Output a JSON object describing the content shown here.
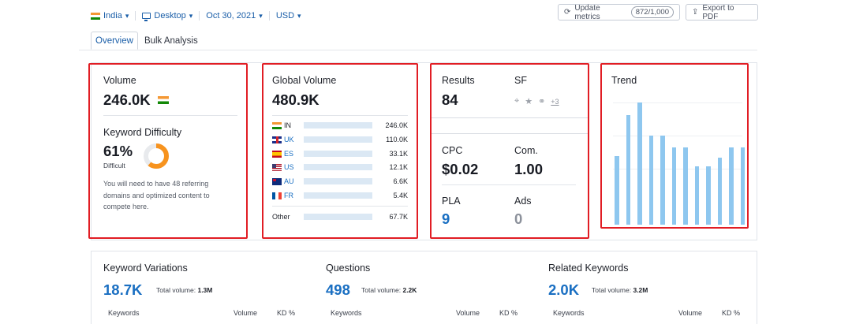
{
  "filters": [
    {
      "label": "India",
      "icon": "india-flag-icon"
    },
    {
      "label": "Desktop",
      "icon": "desktop-icon"
    },
    {
      "label": "Oct 30, 2021",
      "icon": ""
    },
    {
      "label": "USD",
      "icon": ""
    }
  ],
  "actions": {
    "update_label": "Update metrics",
    "update_count": "872/1,000",
    "export_label": "Export to PDF"
  },
  "tabs": [
    "Overview",
    "Bulk Analysis"
  ],
  "volume": {
    "title": "Volume",
    "value": "246.0K",
    "kd_title": "Keyword Difficulty",
    "kd_value": "61%",
    "kd_label": "Difficult",
    "kd_percent": 61,
    "kd_color": "#f7931e",
    "description": "You will need to have 48 referring domains and optimized content to compete here."
  },
  "global_volume": {
    "title": "Global Volume",
    "value": "480.9K",
    "rows": [
      {
        "code": "IN",
        "value": "246.0K",
        "share": 0.51
      },
      {
        "code": "UK",
        "value": "110.0K",
        "share": 0.23
      },
      {
        "code": "ES",
        "value": "33.1K",
        "share": 0.07
      },
      {
        "code": "US",
        "value": "12.1K",
        "share": 0.025
      },
      {
        "code": "AU",
        "value": "6.6K",
        "share": 0.014
      },
      {
        "code": "FR",
        "value": "5.4K",
        "share": 0.011
      }
    ],
    "other": {
      "label": "Other",
      "value": "67.7K",
      "share": 0.14
    }
  },
  "serp": {
    "results_label": "Results",
    "results_value": "84",
    "sf_label": "SF",
    "sf_more": "+3",
    "cpc_label": "CPC",
    "cpc_value": "$0.02",
    "com_label": "Com.",
    "com_value": "1.00",
    "pla_label": "PLA",
    "pla_value": "9",
    "ads_label": "Ads",
    "ads_value": "0"
  },
  "trend": {
    "title": "Trend",
    "values": [
      0.56,
      0.9,
      1.0,
      0.73,
      0.73,
      0.63,
      0.63,
      0.48,
      0.48,
      0.55,
      0.63,
      0.63
    ],
    "color": "#8ec7ef"
  },
  "sections": [
    {
      "title": "Keyword Variations",
      "value": "18.7K",
      "total_label": "Total volume:",
      "total_value": "1.3M",
      "col_keywords": "Keywords",
      "col_volume": "Volume",
      "col_kd": "KD %"
    },
    {
      "title": "Questions",
      "value": "498",
      "total_label": "Total volume:",
      "total_value": "2.2K",
      "col_keywords": "Keywords",
      "col_volume": "Volume",
      "col_kd": "KD %"
    },
    {
      "title": "Related Keywords",
      "value": "2.0K",
      "total_label": "Total volume:",
      "total_value": "3.2M",
      "col_keywords": "Keywords",
      "col_volume": "Volume",
      "col_kd": "KD %"
    }
  ],
  "colors": {
    "accent": "#1a6fc2",
    "highlight": "#e11d24",
    "bar": "#3390d8"
  }
}
